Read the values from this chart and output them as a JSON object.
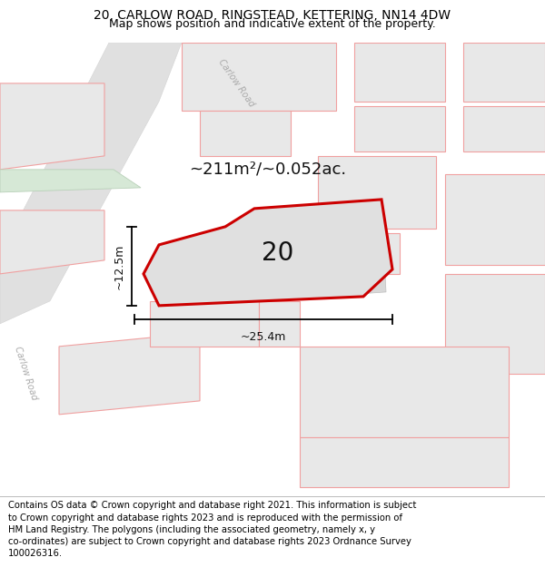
{
  "title_line1": "20, CARLOW ROAD, RINGSTEAD, KETTERING, NN14 4DW",
  "title_line2": "Map shows position and indicative extent of the property.",
  "footer_text_lines": [
    "Contains OS data © Crown copyright and database right 2021. This information is subject to Crown copyright and database rights 2023 and is reproduced with the permission of",
    "HM Land Registry. The polygons (including the associated geometry, namely x, y co-ordinates) are subject to Crown copyright and database rights 2023 Ordnance Survey",
    "100026316."
  ],
  "area_label": "~211m²/~0.052ac.",
  "width_label": "~25.4m",
  "height_label": "~12.5m",
  "number_label": "20",
  "map_bg": "#ffffff",
  "building_fill": "#e8e8e8",
  "building_edge": "#f0a0a0",
  "highlight_fill": "#e0e0e0",
  "highlight_edge": "#cc0000",
  "green_fill": "#d6e8d6",
  "green_edge": "#b8d0b8",
  "road_fill": "#e0e0e0",
  "road_edge": "#cccccc",
  "sep_line_color": "#bbbbbb",
  "title_fontsize": 10,
  "subtitle_fontsize": 9,
  "footer_fontsize": 7.2,
  "area_fontsize": 13,
  "number_fontsize": 20,
  "dim_fontsize": 9,
  "road_label_fontsize": 7,
  "road_label_color": "#aaaaaa"
}
